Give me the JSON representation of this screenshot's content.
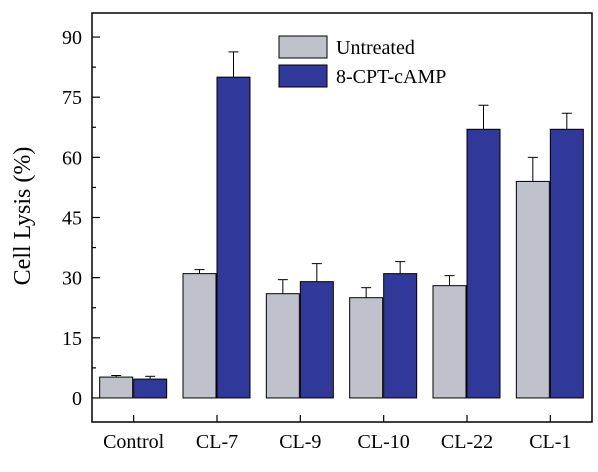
{
  "chart_data": {
    "type": "bar",
    "title": "",
    "xlabel": "",
    "ylabel": "Cell Lysis (%)",
    "ylim": [
      -6,
      96
    ],
    "yticks": [
      0,
      15,
      30,
      45,
      60,
      75,
      90
    ],
    "categories": [
      "Control",
      "CL-7",
      "CL-9",
      "CL-10",
      "CL-22",
      "CL-1"
    ],
    "series": [
      {
        "name": "Untreated",
        "color": "#c0c2cb",
        "values": [
          5.2,
          31,
          26,
          25,
          28,
          54
        ],
        "errors": [
          0.4,
          1.0,
          3.5,
          2.5,
          2.5,
          6
        ]
      },
      {
        "name": "8-CPT-cAMP",
        "color": "#30399a",
        "values": [
          4.7,
          80,
          29,
          31,
          67,
          67
        ],
        "errors": [
          0.7,
          6.3,
          4.5,
          3.0,
          6,
          4
        ]
      }
    ],
    "legend_position": "top-center",
    "grid": false
  }
}
